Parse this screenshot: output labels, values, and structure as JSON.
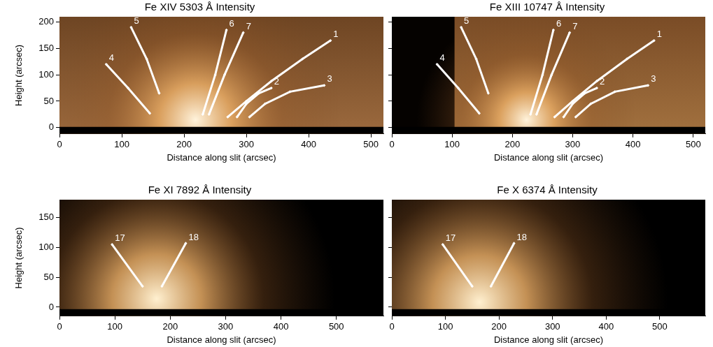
{
  "chart_data": [
    {
      "type": "line",
      "title": "Fe XIV 5303 Å Intensity",
      "x_label": "Distance along slit (arcsec)",
      "y_label": "Height (arcsec)",
      "xlim": [
        0,
        520
      ],
      "ylim": [
        -12,
        210
      ],
      "xticks": [
        0,
        100,
        200,
        300,
        400,
        500
      ],
      "yticks": [
        0,
        50,
        100,
        150,
        200
      ],
      "series": [
        {
          "name": "1",
          "color": "#ffffff",
          "x": [
            270,
            300,
            340,
            390,
            435
          ],
          "values": [
            20,
            50,
            88,
            130,
            165
          ]
        },
        {
          "name": "2",
          "color": "#ffffff",
          "x": [
            285,
            300,
            320,
            340
          ],
          "values": [
            20,
            45,
            65,
            75
          ]
        },
        {
          "name": "3",
          "color": "#ffffff",
          "x": [
            305,
            330,
            370,
            425
          ],
          "values": [
            20,
            45,
            68,
            80
          ]
        },
        {
          "name": "4",
          "color": "#ffffff",
          "x": [
            145,
            110,
            75
          ],
          "values": [
            27,
            75,
            120
          ]
        },
        {
          "name": "5",
          "color": "#ffffff",
          "x": [
            160,
            140,
            115
          ],
          "values": [
            65,
            130,
            190
          ]
        },
        {
          "name": "6",
          "color": "#ffffff",
          "x": [
            230,
            250,
            268
          ],
          "values": [
            25,
            100,
            185
          ]
        },
        {
          "name": "7",
          "color": "#ffffff",
          "x": [
            240,
            265,
            295
          ],
          "values": [
            25,
            100,
            180
          ]
        }
      ]
    },
    {
      "type": "line",
      "title": "Fe XIII 10747 Å Intensity",
      "x_label": "Distance along slit (arcsec)",
      "tick_labels": "x",
      "xlim": [
        0,
        520
      ],
      "ylim": [
        -12,
        210
      ],
      "xticks": [
        0,
        100,
        200,
        300,
        400,
        500
      ],
      "yticks": [
        0,
        50,
        100,
        150,
        200
      ],
      "series": [
        {
          "name": "1",
          "color": "#ffffff",
          "x": [
            270,
            300,
            340,
            390,
            435
          ],
          "values": [
            20,
            50,
            88,
            130,
            165
          ]
        },
        {
          "name": "2",
          "color": "#ffffff",
          "x": [
            285,
            300,
            320,
            340
          ],
          "values": [
            20,
            45,
            65,
            75
          ]
        },
        {
          "name": "3",
          "color": "#ffffff",
          "x": [
            305,
            330,
            370,
            425
          ],
          "values": [
            20,
            45,
            68,
            80
          ]
        },
        {
          "name": "4",
          "color": "#ffffff",
          "x": [
            145,
            110,
            75
          ],
          "values": [
            27,
            75,
            120
          ]
        },
        {
          "name": "5",
          "color": "#ffffff",
          "x": [
            160,
            140,
            115
          ],
          "values": [
            65,
            130,
            190
          ]
        },
        {
          "name": "6",
          "color": "#ffffff",
          "x": [
            230,
            250,
            268
          ],
          "values": [
            25,
            100,
            185
          ]
        },
        {
          "name": "7",
          "color": "#ffffff",
          "x": [
            240,
            265,
            295
          ],
          "values": [
            25,
            100,
            180
          ]
        }
      ]
    },
    {
      "type": "line",
      "title": "Fe XI 7892 Å Intensity",
      "x_label": "Distance along slit (arcsec)",
      "y_label": "Height (arcsec)",
      "xlim": [
        0,
        585
      ],
      "ylim": [
        -15,
        180
      ],
      "xticks": [
        0,
        100,
        200,
        300,
        400,
        500
      ],
      "yticks": [
        0,
        50,
        100,
        150
      ],
      "series": [
        {
          "name": "17",
          "color": "#ffffff",
          "x": [
            150,
            95
          ],
          "values": [
            35,
            105
          ]
        },
        {
          "name": "18",
          "color": "#ffffff",
          "x": [
            185,
            228
          ],
          "values": [
            35,
            107
          ]
        }
      ]
    },
    {
      "type": "line",
      "title": "Fe X 6374 Å Intensity",
      "x_label": "Distance along slit (arcsec)",
      "tick_labels": "x",
      "xlim": [
        0,
        585
      ],
      "ylim": [
        -15,
        180
      ],
      "xticks": [
        0,
        100,
        200,
        300,
        400,
        500
      ],
      "yticks": [
        0,
        50,
        100,
        150
      ],
      "series": [
        {
          "name": "17",
          "color": "#ffffff",
          "x": [
            150,
            95
          ],
          "values": [
            35,
            105
          ]
        },
        {
          "name": "18",
          "color": "#ffffff",
          "x": [
            185,
            228
          ],
          "values": [
            35,
            107
          ]
        }
      ]
    }
  ]
}
